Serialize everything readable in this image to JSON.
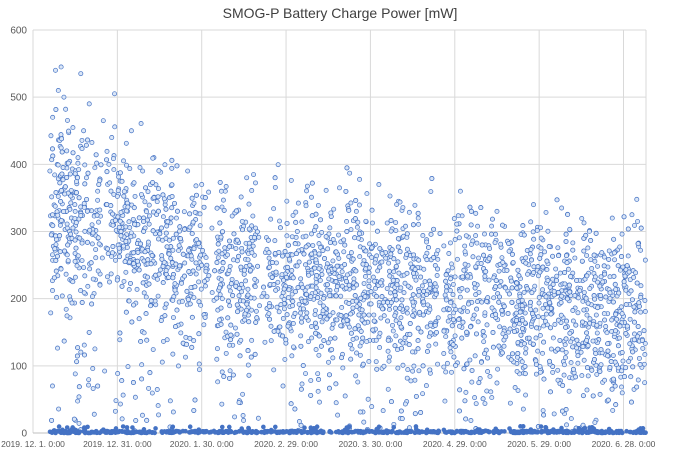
{
  "chart_data": {
    "type": "scatter",
    "title": "SMOG-P Battery Charge Power [mW]",
    "xlabel": "",
    "ylabel": "",
    "x_type": "date",
    "xlim": [
      "2019-12-01",
      "2020-07-06"
    ],
    "ylim": [
      0,
      600
    ],
    "y_ticks": [
      0,
      100,
      200,
      300,
      400,
      500,
      600
    ],
    "x_ticks": [
      {
        "date": "2019-12-01",
        "label": "2019. 12. 1. 0:00"
      },
      {
        "date": "2019-12-31",
        "label": "2019. 12. 31. 0:00"
      },
      {
        "date": "2020-01-30",
        "label": "2020. 1. 30. 0:00"
      },
      {
        "date": "2020-02-29",
        "label": "2020. 2. 29. 0:00"
      },
      {
        "date": "2020-03-30",
        "label": "2020. 3. 30. 0:00"
      },
      {
        "date": "2020-04-29",
        "label": "2020. 4. 29. 0:00"
      },
      {
        "date": "2020-05-29",
        "label": "2020. 5. 29. 0:00"
      },
      {
        "date": "2020-06-28",
        "label": "2020. 6. 28. 0:00"
      }
    ],
    "grid": true,
    "legend": "none",
    "marker_color": "#4472c4",
    "marker_fill": "#dae6f7",
    "series": [
      {
        "points": [
          [
            "2019-12-07",
            390
          ],
          [
            "2019-12-08",
            470
          ],
          [
            "2019-12-09",
            540
          ],
          [
            "2019-12-10",
            510
          ],
          [
            "2019-12-10",
            320
          ],
          [
            "2019-12-11",
            545
          ],
          [
            "2019-12-11",
            440
          ],
          [
            "2019-12-12",
            500
          ],
          [
            "2019-12-12",
            380
          ],
          [
            "2019-12-13",
            420
          ],
          [
            "2019-12-14",
            300
          ],
          [
            "2019-12-15",
            350
          ],
          [
            "2019-12-16",
            330
          ],
          [
            "2019-12-17",
            410
          ],
          [
            "2019-12-18",
            535
          ],
          [
            "2019-12-19",
            450
          ],
          [
            "2019-12-20",
            380
          ],
          [
            "2019-12-21",
            490
          ],
          [
            "2019-12-22",
            310
          ],
          [
            "2019-12-23",
            395
          ],
          [
            "2019-12-24",
            360
          ],
          [
            "2019-12-25",
            280
          ],
          [
            "2019-12-26",
            465
          ],
          [
            "2019-12-27",
            340
          ],
          [
            "2019-12-28",
            400
          ],
          [
            "2019-12-29",
            440
          ],
          [
            "2019-12-30",
            505
          ],
          [
            "2019-12-31",
            300
          ],
          [
            "2020-01-01",
            375
          ],
          [
            "2020-01-02",
            330
          ],
          [
            "2020-01-03",
            360
          ],
          [
            "2020-01-05",
            450
          ],
          [
            "2020-01-07",
            310
          ],
          [
            "2020-01-09",
            390
          ],
          [
            "2020-01-11",
            280
          ],
          [
            "2020-01-13",
            410
          ],
          [
            "2020-01-15",
            300
          ],
          [
            "2020-01-17",
            340
          ],
          [
            "2020-01-19",
            260
          ],
          [
            "2020-01-21",
            320
          ],
          [
            "2020-01-25",
            390
          ],
          [
            "2020-01-30",
            370
          ],
          [
            "2020-02-06",
            360
          ],
          [
            "2020-02-15",
            380
          ],
          [
            "2020-03-04",
            300
          ],
          [
            "2020-03-19",
            365
          ],
          [
            "2020-03-25",
            330
          ],
          [
            "2020-04-02",
            370
          ],
          [
            "2020-04-09",
            345
          ],
          [
            "2020-04-16",
            320
          ],
          [
            "2020-05-01",
            360
          ],
          [
            "2020-05-14",
            330
          ],
          [
            "2020-05-27",
            340
          ],
          [
            "2020-06-06",
            335
          ],
          [
            "2020-06-24",
            320
          ],
          [
            "2020-07-01",
            325
          ],
          [
            "2020-07-03",
            315
          ]
        ]
      }
    ]
  }
}
